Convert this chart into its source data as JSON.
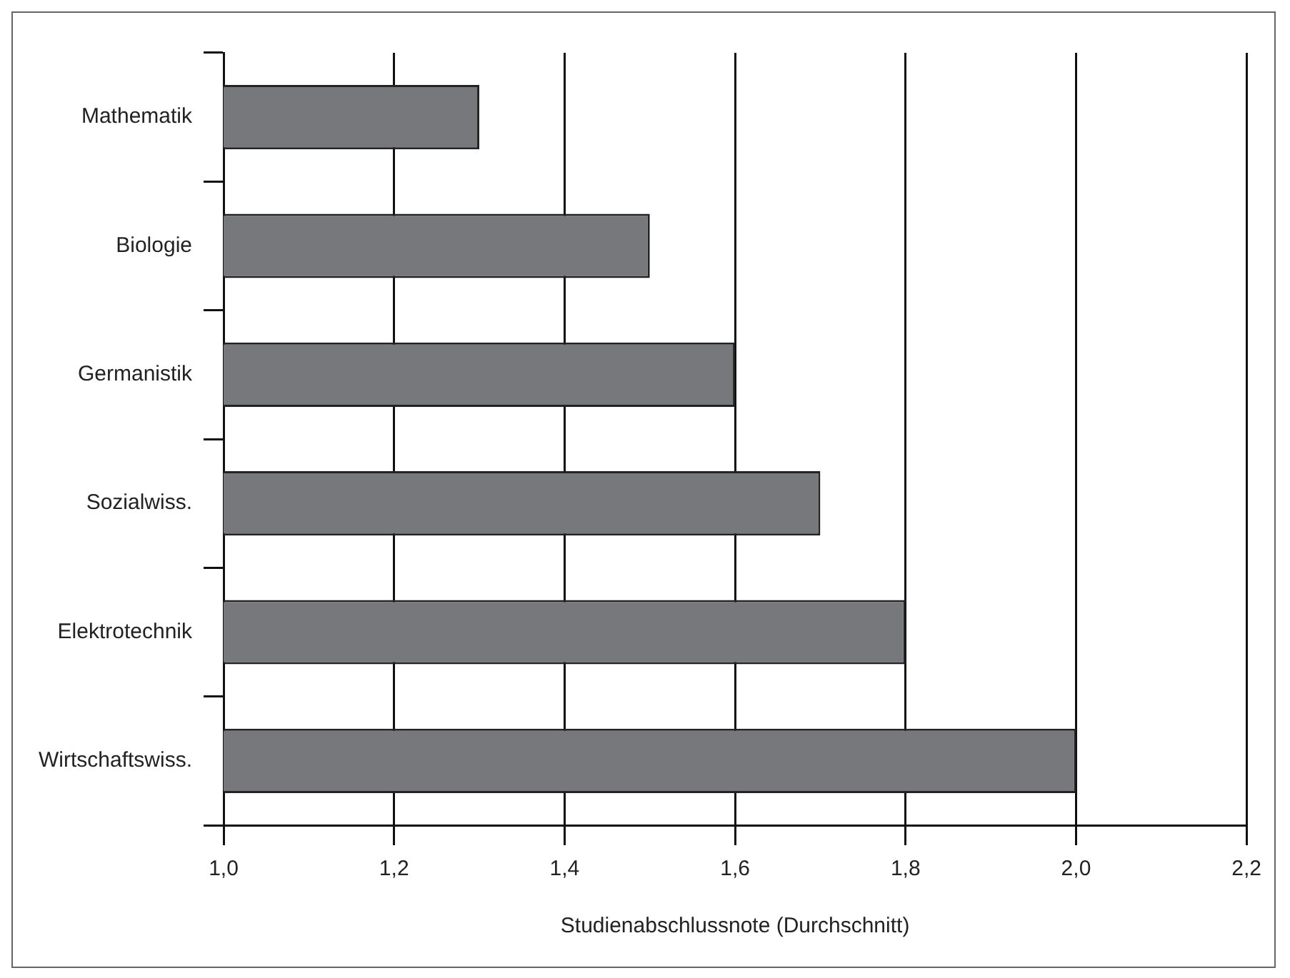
{
  "chart_data": {
    "type": "bar",
    "orientation": "horizontal",
    "xlabel": "Studienabschlussnote (Durchschnitt)",
    "categories": [
      "Mathematik",
      "Biologie",
      "Germanistik",
      "Sozialwiss.",
      "Elektrotechnik",
      "Wirtschaftswiss."
    ],
    "values": [
      1.3,
      1.5,
      1.6,
      1.7,
      1.8,
      2.0
    ],
    "color": "#77787b",
    "xlim": [
      1.0,
      2.2
    ],
    "xticks": [
      {
        "value": 1.0,
        "label": "1,0"
      },
      {
        "value": 1.2,
        "label": "1,2"
      },
      {
        "value": 1.4,
        "label": "1,4"
      },
      {
        "value": 1.6,
        "label": "1,6"
      },
      {
        "value": 1.8,
        "label": "1,8"
      },
      {
        "value": 2.0,
        "label": "2,0"
      },
      {
        "value": 2.2,
        "label": "2,2"
      }
    ],
    "grid": "x"
  }
}
